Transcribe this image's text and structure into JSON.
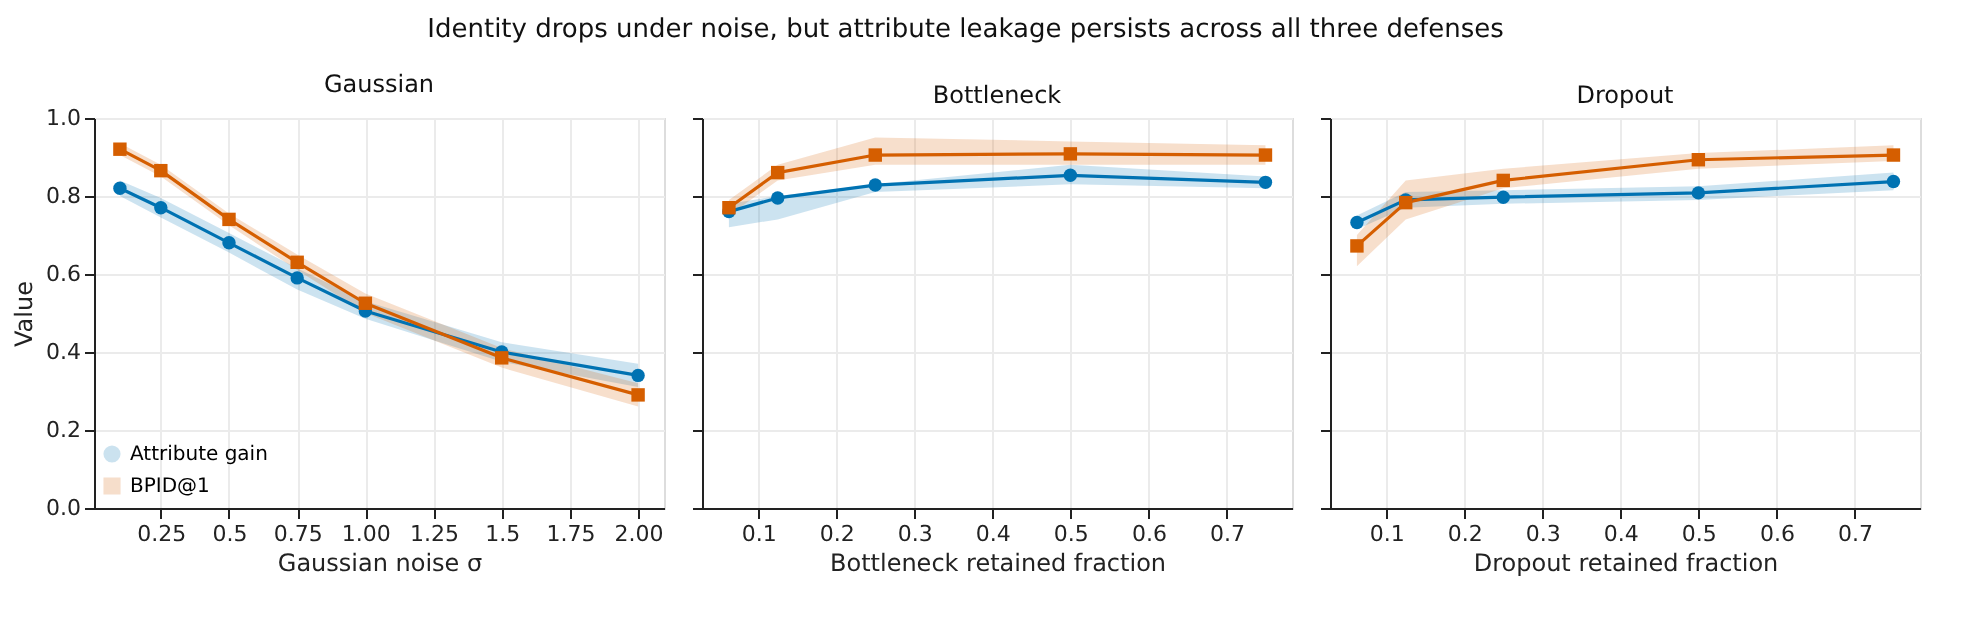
{
  "chart_data": [
    {
      "type": "line",
      "title": "Gaussian",
      "annotations": [
        "Identity drops under noise, but attribute leakage persists across all three defenses"
      ],
      "xlabel": "Gaussian noise σ",
      "ylabel": "Value",
      "x": [
        0.1,
        0.25,
        0.5,
        0.75,
        1.0,
        1.5,
        2.0
      ],
      "xlim": [
        0.005,
        2.095
      ],
      "xticks": [
        0.25,
        0.5,
        0.75,
        {
          "value": 1,
          "label": "1.00"
        },
        1.25,
        1.5,
        1.75,
        {
          "value": 2,
          "label": "2.00"
        }
      ],
      "ylim": [
        0,
        1
      ],
      "yticks": [
        {
          "value": 0,
          "label": "0.0"
        },
        0.2,
        0.4,
        0.6,
        0.8,
        {
          "value": 1,
          "label": "1.0"
        }
      ],
      "grid": true,
      "legend": "bottom left",
      "series": [
        {
          "name": "Attribute gain",
          "color": "#0072b2",
          "marker": "circle",
          "values": [
            0.82,
            0.77,
            0.68,
            0.59,
            0.505,
            0.4,
            0.34
          ],
          "lower": [
            0.8,
            0.745,
            0.655,
            0.56,
            0.485,
            0.375,
            0.31
          ],
          "upper": [
            0.84,
            0.795,
            0.705,
            0.615,
            0.53,
            0.425,
            0.37
          ]
        },
        {
          "name": "BPID@1",
          "color": "#d55e00",
          "marker": "square",
          "values": [
            0.92,
            0.865,
            0.74,
            0.63,
            0.525,
            0.385,
            0.29
          ],
          "lower": [
            0.905,
            0.85,
            0.725,
            0.61,
            0.5,
            0.36,
            0.26
          ],
          "upper": [
            0.935,
            0.88,
            0.755,
            0.65,
            0.55,
            0.41,
            0.32
          ]
        }
      ]
    },
    {
      "type": "line",
      "title": "Bottleneck",
      "xlabel": "Bottleneck retained fraction",
      "x": [
        0.0625,
        0.125,
        0.25,
        0.5,
        0.75
      ],
      "xlim": [
        0.028,
        0.784
      ],
      "xticks": [
        0.1,
        0.2,
        0.3,
        0.4,
        0.5,
        0.6,
        0.7
      ],
      "ylim": [
        0,
        1
      ],
      "yticks": [
        0,
        0.2,
        0.4,
        0.6,
        0.8,
        1.0
      ],
      "grid": true,
      "tick_labels": "x",
      "series": [
        {
          "color": "#0072b2",
          "marker": "circle",
          "values": [
            0.76,
            0.795,
            0.828,
            0.853,
            0.835
          ],
          "lower": [
            0.72,
            0.74,
            0.81,
            0.83,
            0.82
          ],
          "upper": [
            0.78,
            0.8,
            0.83,
            0.88,
            0.85
          ]
        },
        {
          "color": "#d55e00",
          "marker": "square",
          "values": [
            0.77,
            0.86,
            0.905,
            0.908,
            0.905
          ],
          "lower": [
            0.75,
            0.84,
            0.88,
            0.88,
            0.88
          ],
          "upper": [
            0.79,
            0.88,
            0.95,
            0.94,
            0.93
          ]
        }
      ]
    },
    {
      "type": "line",
      "title": "Dropout",
      "xlabel": "Dropout retained fraction",
      "x": [
        0.0625,
        0.125,
        0.25,
        0.5,
        0.75
      ],
      "xlim": [
        0.028,
        0.784
      ],
      "xticks": [
        0.1,
        0.2,
        0.3,
        0.4,
        0.5,
        0.6,
        0.7
      ],
      "ylim": [
        0,
        1
      ],
      "yticks": [
        0,
        0.2,
        0.4,
        0.6,
        0.8,
        1.0
      ],
      "grid": true,
      "tick_labels": "x",
      "series": [
        {
          "color": "#0072b2",
          "marker": "circle",
          "values": [
            0.732,
            0.79,
            0.797,
            0.808,
            0.837
          ],
          "lower": [
            0.715,
            0.77,
            0.78,
            0.79,
            0.815
          ],
          "upper": [
            0.75,
            0.81,
            0.815,
            0.825,
            0.86
          ]
        },
        {
          "color": "#d55e00",
          "marker": "square",
          "values": [
            0.672,
            0.783,
            0.84,
            0.893,
            0.905
          ],
          "lower": [
            0.62,
            0.74,
            0.82,
            0.87,
            0.89
          ],
          "upper": [
            0.7,
            0.84,
            0.87,
            0.91,
            0.93
          ]
        }
      ]
    }
  ]
}
